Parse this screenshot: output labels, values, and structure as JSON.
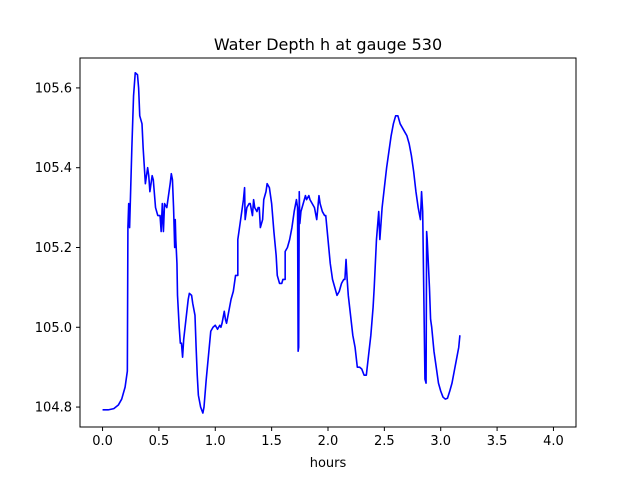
{
  "chart_data": {
    "type": "line",
    "title": "Water Depth h at gauge 530",
    "xlabel": "hours",
    "ylabel": "",
    "xlim": [
      -0.2,
      4.2
    ],
    "ylim": [
      104.75,
      105.675
    ],
    "xticks": [
      0.0,
      0.5,
      1.0,
      1.5,
      2.0,
      2.5,
      3.0,
      3.5,
      4.0
    ],
    "xtick_labels": [
      "0.0",
      "0.5",
      "1.0",
      "1.5",
      "2.0",
      "2.5",
      "3.0",
      "3.5",
      "4.0"
    ],
    "yticks": [
      104.8,
      105.0,
      105.2,
      105.4,
      105.6
    ],
    "ytick_labels": [
      "104.8",
      "105.0",
      "105.2",
      "105.4",
      "105.6"
    ],
    "grid": false,
    "series": [
      {
        "color": "#0000ff",
        "points": [
          [
            0.0,
            104.793
          ],
          [
            0.05,
            104.793
          ],
          [
            0.1,
            104.796
          ],
          [
            0.14,
            104.805
          ],
          [
            0.17,
            104.82
          ],
          [
            0.2,
            104.85
          ],
          [
            0.22,
            104.89
          ],
          [
            0.225,
            105.25
          ],
          [
            0.232,
            105.31
          ],
          [
            0.24,
            105.25
          ],
          [
            0.25,
            105.35
          ],
          [
            0.26,
            105.45
          ],
          [
            0.275,
            105.58
          ],
          [
            0.29,
            105.638
          ],
          [
            0.31,
            105.633
          ],
          [
            0.32,
            105.6
          ],
          [
            0.33,
            105.53
          ],
          [
            0.35,
            105.51
          ],
          [
            0.36,
            105.45
          ],
          [
            0.38,
            105.36
          ],
          [
            0.4,
            105.4
          ],
          [
            0.41,
            105.38
          ],
          [
            0.42,
            105.34
          ],
          [
            0.44,
            105.38
          ],
          [
            0.45,
            105.37
          ],
          [
            0.47,
            105.3
          ],
          [
            0.49,
            105.28
          ],
          [
            0.51,
            105.28
          ],
          [
            0.52,
            105.24
          ],
          [
            0.53,
            105.31
          ],
          [
            0.54,
            105.24
          ],
          [
            0.55,
            105.31
          ],
          [
            0.57,
            105.3
          ],
          [
            0.59,
            105.34
          ],
          [
            0.6,
            105.36
          ],
          [
            0.61,
            105.385
          ],
          [
            0.62,
            105.37
          ],
          [
            0.63,
            105.3
          ],
          [
            0.64,
            105.2
          ],
          [
            0.645,
            105.27
          ],
          [
            0.65,
            105.22
          ],
          [
            0.66,
            105.16
          ],
          [
            0.665,
            105.08
          ],
          [
            0.68,
            105.0
          ],
          [
            0.69,
            104.96
          ],
          [
            0.7,
            104.96
          ],
          [
            0.71,
            104.925
          ],
          [
            0.72,
            104.97
          ],
          [
            0.74,
            105.02
          ],
          [
            0.76,
            105.07
          ],
          [
            0.77,
            105.085
          ],
          [
            0.79,
            105.08
          ],
          [
            0.8,
            105.06
          ],
          [
            0.82,
            105.03
          ],
          [
            0.83,
            104.95
          ],
          [
            0.84,
            104.88
          ],
          [
            0.85,
            104.83
          ],
          [
            0.87,
            104.8
          ],
          [
            0.89,
            104.785
          ],
          [
            0.9,
            104.8
          ],
          [
            0.92,
            104.87
          ],
          [
            0.94,
            104.93
          ],
          [
            0.96,
            104.99
          ],
          [
            0.98,
            105.0
          ],
          [
            1.0,
            105.005
          ],
          [
            1.01,
            105.0
          ],
          [
            1.02,
            104.995
          ],
          [
            1.04,
            105.005
          ],
          [
            1.05,
            105.0
          ],
          [
            1.06,
            105.01
          ],
          [
            1.08,
            105.04
          ],
          [
            1.09,
            105.02
          ],
          [
            1.1,
            105.01
          ],
          [
            1.12,
            105.04
          ],
          [
            1.14,
            105.07
          ],
          [
            1.16,
            105.09
          ],
          [
            1.18,
            105.13
          ],
          [
            1.2,
            105.13
          ],
          [
            1.2,
            105.22
          ],
          [
            1.22,
            105.26
          ],
          [
            1.25,
            105.32
          ],
          [
            1.26,
            105.35
          ],
          [
            1.265,
            105.27
          ],
          [
            1.28,
            105.3
          ],
          [
            1.3,
            105.31
          ],
          [
            1.31,
            105.31
          ],
          [
            1.33,
            105.28
          ],
          [
            1.34,
            105.32
          ],
          [
            1.35,
            105.3
          ],
          [
            1.37,
            105.29
          ],
          [
            1.38,
            105.3
          ],
          [
            1.39,
            105.3
          ],
          [
            1.4,
            105.25
          ],
          [
            1.42,
            105.27
          ],
          [
            1.43,
            105.32
          ],
          [
            1.45,
            105.34
          ],
          [
            1.46,
            105.36
          ],
          [
            1.48,
            105.35
          ],
          [
            1.5,
            105.31
          ],
          [
            1.52,
            105.24
          ],
          [
            1.54,
            105.18
          ],
          [
            1.55,
            105.13
          ],
          [
            1.57,
            105.11
          ],
          [
            1.59,
            105.11
          ],
          [
            1.6,
            105.12
          ],
          [
            1.62,
            105.12
          ],
          [
            1.62,
            105.19
          ],
          [
            1.64,
            105.2
          ],
          [
            1.66,
            105.22
          ],
          [
            1.68,
            105.25
          ],
          [
            1.7,
            105.29
          ],
          [
            1.72,
            105.32
          ],
          [
            1.73,
            105.3
          ],
          [
            1.735,
            104.94
          ],
          [
            1.74,
            104.95
          ],
          [
            1.745,
            105.34
          ],
          [
            1.75,
            105.26
          ],
          [
            1.76,
            105.29
          ],
          [
            1.78,
            105.31
          ],
          [
            1.8,
            105.33
          ],
          [
            1.81,
            105.32
          ],
          [
            1.83,
            105.33
          ],
          [
            1.84,
            105.32
          ],
          [
            1.86,
            105.31
          ],
          [
            1.88,
            105.3
          ],
          [
            1.9,
            105.27
          ],
          [
            1.92,
            105.33
          ],
          [
            1.93,
            105.31
          ],
          [
            1.95,
            105.29
          ],
          [
            1.97,
            105.28
          ],
          [
            1.98,
            105.28
          ],
          [
            2.0,
            105.22
          ],
          [
            2.02,
            105.16
          ],
          [
            2.04,
            105.12
          ],
          [
            2.06,
            105.1
          ],
          [
            2.08,
            105.08
          ],
          [
            2.1,
            105.09
          ],
          [
            2.12,
            105.11
          ],
          [
            2.14,
            105.12
          ],
          [
            2.15,
            105.12
          ],
          [
            2.16,
            105.17
          ],
          [
            2.17,
            105.12
          ],
          [
            2.18,
            105.08
          ],
          [
            2.2,
            105.03
          ],
          [
            2.22,
            104.98
          ],
          [
            2.24,
            104.95
          ],
          [
            2.26,
            104.9
          ],
          [
            2.28,
            104.9
          ],
          [
            2.3,
            104.895
          ],
          [
            2.32,
            104.88
          ],
          [
            2.34,
            104.88
          ],
          [
            2.36,
            104.93
          ],
          [
            2.38,
            104.98
          ],
          [
            2.4,
            105.05
          ],
          [
            2.41,
            105.1
          ],
          [
            2.42,
            105.16
          ],
          [
            2.43,
            105.22
          ],
          [
            2.45,
            105.29
          ],
          [
            2.46,
            105.22
          ],
          [
            2.47,
            105.26
          ],
          [
            2.48,
            105.3
          ],
          [
            2.5,
            105.35
          ],
          [
            2.52,
            105.4
          ],
          [
            2.54,
            105.44
          ],
          [
            2.56,
            105.48
          ],
          [
            2.58,
            105.51
          ],
          [
            2.6,
            105.53
          ],
          [
            2.62,
            105.53
          ],
          [
            2.64,
            105.51
          ],
          [
            2.66,
            105.5
          ],
          [
            2.68,
            105.49
          ],
          [
            2.7,
            105.48
          ],
          [
            2.72,
            105.46
          ],
          [
            2.74,
            105.43
          ],
          [
            2.76,
            105.39
          ],
          [
            2.78,
            105.34
          ],
          [
            2.8,
            105.3
          ],
          [
            2.82,
            105.27
          ],
          [
            2.83,
            105.34
          ],
          [
            2.84,
            105.29
          ],
          [
            2.86,
            104.87
          ],
          [
            2.87,
            104.86
          ],
          [
            2.875,
            105.24
          ],
          [
            2.88,
            105.22
          ],
          [
            2.89,
            105.16
          ],
          [
            2.9,
            105.1
          ],
          [
            2.91,
            105.02
          ],
          [
            2.92,
            105.0
          ],
          [
            2.94,
            104.94
          ],
          [
            2.96,
            104.9
          ],
          [
            2.98,
            104.86
          ],
          [
            3.0,
            104.84
          ],
          [
            3.02,
            104.825
          ],
          [
            3.04,
            104.82
          ],
          [
            3.06,
            104.822
          ],
          [
            3.08,
            104.84
          ],
          [
            3.1,
            104.86
          ],
          [
            3.12,
            104.89
          ],
          [
            3.14,
            104.92
          ],
          [
            3.16,
            104.95
          ],
          [
            3.17,
            104.98
          ]
        ]
      }
    ]
  }
}
